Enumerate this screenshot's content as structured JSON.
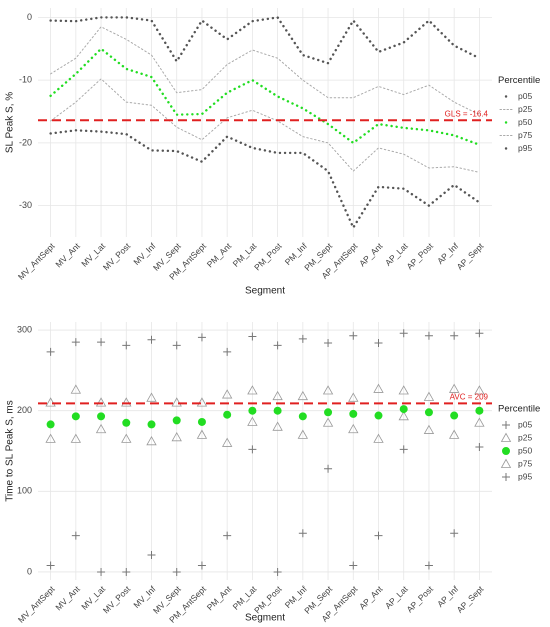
{
  "chart_data": [
    {
      "type": "line",
      "y_label": "SL Peak S, %",
      "x_label": "Segment",
      "legend_title": "Percentile",
      "categories": [
        "MV_AntSept",
        "MV_Ant",
        "MV_Lat",
        "MV_Post",
        "MV_Inf",
        "MV_Sept",
        "PM_AntSept",
        "PM_Ant",
        "PM_Lat",
        "PM_Post",
        "PM_Inf",
        "PM_Sept",
        "AP_AntSept",
        "AP_Ant",
        "AP_Lat",
        "AP_Post",
        "AP_Inf",
        "AP_Sept"
      ],
      "series": [
        {
          "name": "p05",
          "color": "#555555",
          "style": "dots",
          "values": [
            -18.5,
            -18,
            -18.2,
            -18.6,
            -21.2,
            -21.3,
            -23,
            -19,
            -20.8,
            -21.6,
            -21.6,
            -24.5,
            -33.5,
            -27,
            -27.3,
            -30,
            -26.7,
            -29.5
          ]
        },
        {
          "name": "p25",
          "color": "#aaaaaa",
          "style": "dotted",
          "values": [
            -16.5,
            -13.5,
            -9.8,
            -13.5,
            -14,
            -17.5,
            -19.5,
            -16,
            -14.8,
            -16.5,
            -19,
            -20,
            -24.5,
            -20.8,
            -21.8,
            -24,
            -23.8,
            -24.7
          ]
        },
        {
          "name": "p50",
          "color": "#22dd22",
          "style": "dots",
          "values": [
            -12.5,
            -9,
            -5,
            -8.2,
            -9.5,
            -15.5,
            -15.4,
            -12,
            -10,
            -12.6,
            -14.5,
            -17,
            -20,
            -17,
            -17.6,
            -18,
            -18.8,
            -20.3
          ]
        },
        {
          "name": "p75",
          "color": "#aaaaaa",
          "style": "dotted",
          "values": [
            -9,
            -6.5,
            -1.5,
            -3.5,
            -6,
            -12,
            -11.5,
            -7.5,
            -5.2,
            -6.5,
            -10,
            -12.8,
            -12.8,
            -11,
            -12.3,
            -10.8,
            -13.5,
            -15.5
          ]
        },
        {
          "name": "p95",
          "color": "#555555",
          "style": "dots",
          "values": [
            -0.5,
            -0.6,
            0,
            0,
            -0.5,
            -7,
            -0.5,
            -3.5,
            -0.6,
            0,
            -6,
            -7.3,
            -0.5,
            -5.5,
            -4,
            -0.5,
            -4.5,
            -6.5
          ]
        }
      ],
      "reference_line": {
        "value": -16.4,
        "label": "GLS = -16.4",
        "color": "#e02020"
      },
      "ylim": [
        -35,
        1.5
      ],
      "yticks": [
        -30,
        -20,
        -10,
        0
      ],
      "grid": true
    },
    {
      "type": "scatter",
      "y_label": "Time to SL Peak S, ms",
      "x_label": "Segment",
      "legend_title": "Percentile",
      "categories": [
        "MV_AntSept",
        "MV_Ant",
        "MV_Lat",
        "MV_Post",
        "MV_Inf",
        "MV_Sept",
        "PM_AntSept",
        "PM_Ant",
        "PM_Lat",
        "PM_Post",
        "PM_Inf",
        "PM_Sept",
        "AP_AntSept",
        "AP_Ant",
        "AP_Lat",
        "AP_Post",
        "AP_Inf",
        "AP_Sept"
      ],
      "series": [
        {
          "name": "p05",
          "color": "#777777",
          "marker": "plus",
          "values": [
            8,
            45,
            0,
            0,
            21,
            0,
            8,
            45,
            152,
            0,
            48,
            128,
            8,
            45,
            152,
            8,
            48,
            155
          ]
        },
        {
          "name": "p25",
          "color": "#999999",
          "marker": "triangle",
          "values": [
            165,
            165,
            177,
            165,
            162,
            167,
            170,
            160,
            186,
            180,
            170,
            185,
            177,
            165,
            193,
            176,
            170,
            185
          ]
        },
        {
          "name": "p50",
          "color": "#22dd22",
          "marker": "circle",
          "values": [
            183,
            193,
            193,
            185,
            183,
            188,
            186,
            195,
            200,
            200,
            193,
            198,
            196,
            194,
            202,
            198,
            194,
            200
          ]
        },
        {
          "name": "p75",
          "color": "#999999",
          "marker": "triangle",
          "values": [
            210,
            226,
            210,
            210,
            216,
            210,
            210,
            220,
            225,
            218,
            218,
            225,
            216,
            227,
            225,
            217,
            227,
            225
          ]
        },
        {
          "name": "p95",
          "color": "#777777",
          "marker": "plus",
          "values": [
            273,
            285,
            285,
            281,
            288,
            281,
            291,
            273,
            292,
            281,
            289,
            284,
            293,
            284,
            296,
            293,
            293,
            296
          ]
        }
      ],
      "reference_line": {
        "value": 209,
        "label": "AVC = 209",
        "color": "#e02020"
      },
      "ylim": [
        -10,
        310
      ],
      "yticks": [
        0,
        100,
        200,
        300
      ],
      "grid": true
    }
  ]
}
